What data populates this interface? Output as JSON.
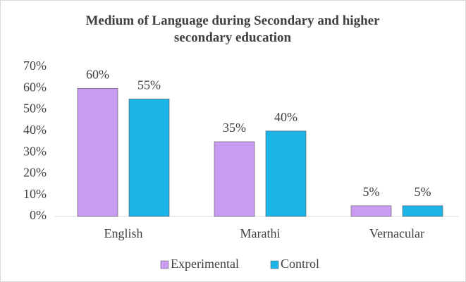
{
  "chart_data": {
    "type": "bar",
    "title": "Medium of Language during Secondary and higher secondary education",
    "categories": [
      "English",
      "Marathi",
      "Vernacular"
    ],
    "series": [
      {
        "name": "Experimental",
        "color": "#c99cf2",
        "values": [
          60,
          35,
          5
        ],
        "value_labels": [
          "60%",
          "35%",
          "5%"
        ]
      },
      {
        "name": "Control",
        "color": "#1cb4e6",
        "values": [
          55,
          40,
          5
        ],
        "value_labels": [
          "55%",
          "40%",
          "5%"
        ]
      }
    ],
    "ylim": [
      0,
      70
    ],
    "yticks": [
      {
        "value": 0,
        "label": "0%"
      },
      {
        "value": 10,
        "label": "10%"
      },
      {
        "value": 20,
        "label": "20%"
      },
      {
        "value": 30,
        "label": "30%"
      },
      {
        "value": 40,
        "label": "40%"
      },
      {
        "value": 50,
        "label": "50%"
      },
      {
        "value": 60,
        "label": "60%"
      },
      {
        "value": 70,
        "label": "70%"
      }
    ],
    "grid": false,
    "legend": "bottom"
  }
}
